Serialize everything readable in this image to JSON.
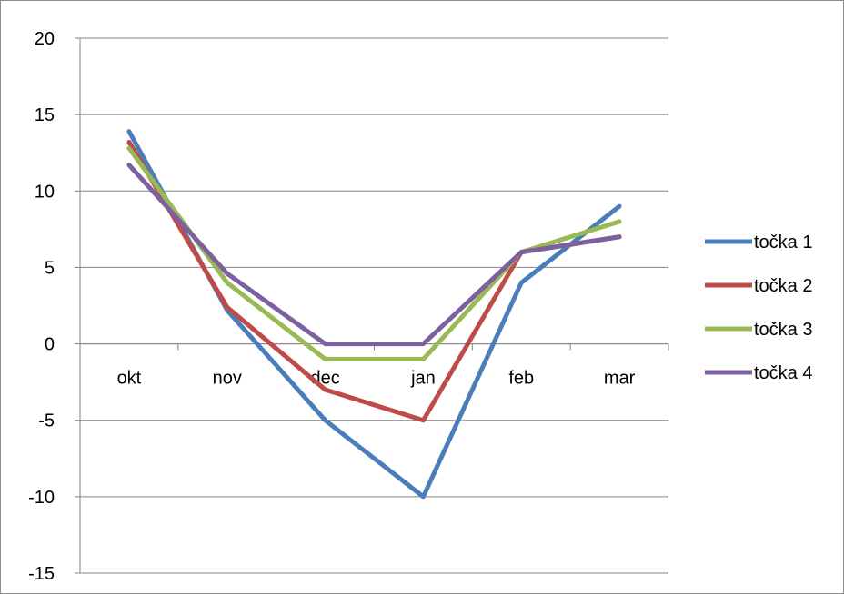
{
  "chart_data": {
    "type": "line",
    "categories": [
      "okt",
      "nov",
      "dec",
      "jan",
      "feb",
      "mar"
    ],
    "series": [
      {
        "name": "točka 1",
        "color": "#4a7ebb",
        "values": [
          13.9,
          2.2,
          -5,
          -10,
          4,
          9
        ]
      },
      {
        "name": "točka 2",
        "color": "#be4b48",
        "values": [
          13.2,
          2.4,
          -3,
          -5,
          6,
          7
        ]
      },
      {
        "name": "točka 3",
        "color": "#98b954",
        "values": [
          12.8,
          4,
          -1,
          -1,
          6,
          8
        ]
      },
      {
        "name": "točka 4",
        "color": "#7d60a0",
        "values": [
          11.7,
          4.6,
          0,
          0,
          6,
          7
        ]
      }
    ],
    "ylim": [
      -15,
      20
    ],
    "yticks": [
      -15,
      -10,
      -5,
      0,
      5,
      10,
      15,
      20
    ],
    "title": "",
    "xlabel": "",
    "ylabel": "",
    "grid": "horizontal",
    "legend_position": "right"
  }
}
